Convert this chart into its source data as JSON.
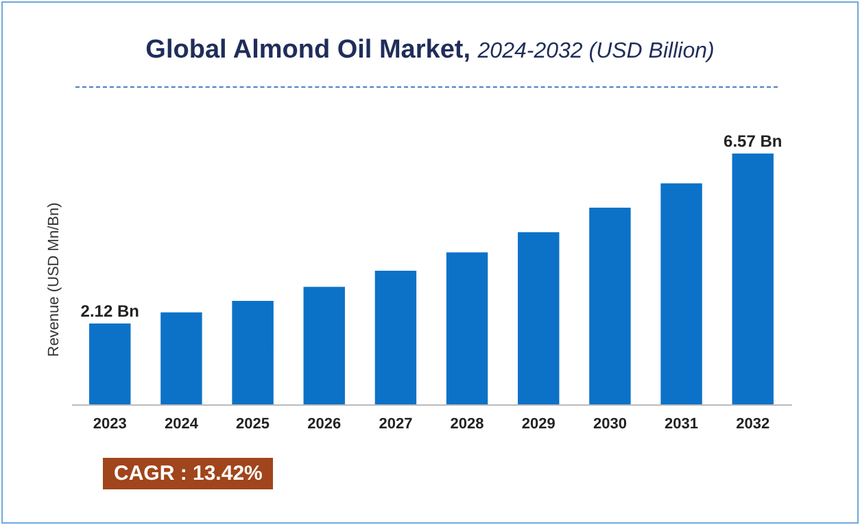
{
  "chart_data": {
    "type": "bar",
    "title": "Global Almond Oil Market,",
    "subtitle": "2024-2032 (USD Billion)",
    "ylabel": "Revenue (USD Mn/Bn)",
    "categories": [
      "2023",
      "2024",
      "2025",
      "2026",
      "2027",
      "2028",
      "2029",
      "2030",
      "2031",
      "2032"
    ],
    "values": [
      2.12,
      2.41,
      2.71,
      3.08,
      3.5,
      3.98,
      4.51,
      5.15,
      5.79,
      6.57
    ],
    "value_labels": [
      "2.12 Bn",
      null,
      null,
      null,
      null,
      null,
      null,
      null,
      null,
      "6.57 Bn"
    ],
    "color": "#0b72c8",
    "grid": false,
    "annotations": [
      "CAGR : 13.42%"
    ]
  }
}
